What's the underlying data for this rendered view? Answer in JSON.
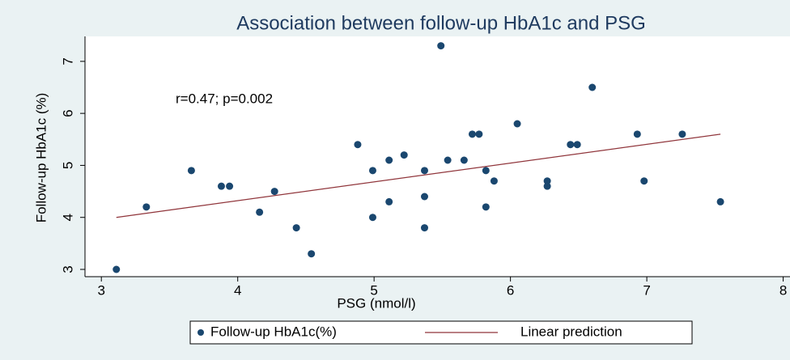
{
  "chart_data": {
    "type": "scatter",
    "title": "Association between follow-up HbA1c and PSG",
    "x_label": "PSG (nmol/l)",
    "y_label": "Follow-up HbA1c (%)",
    "annotation": "r=0.47; p=0.002",
    "xlim": [
      2.88,
      8.05
    ],
    "xticks": [
      3,
      4,
      5,
      6,
      7,
      8
    ],
    "ylim": [
      2.86,
      7.48
    ],
    "yticks": [
      3,
      4,
      5,
      6,
      7
    ],
    "series": [
      {
        "name": "Follow-up HbA1c(%)",
        "color": "#1a476f",
        "type": "scatter",
        "x": [
          3.11,
          3.33,
          3.66,
          3.88,
          3.94,
          4.16,
          4.27,
          4.43,
          4.54,
          4.88,
          4.99,
          4.99,
          5.11,
          5.11,
          5.22,
          5.37,
          5.37,
          5.37,
          5.49,
          5.54,
          5.66,
          5.72,
          5.77,
          5.82,
          5.82,
          5.88,
          6.05,
          6.27,
          6.27,
          6.44,
          6.49,
          6.6,
          6.93,
          6.98,
          7.26,
          7.54
        ],
        "values": [
          3.0,
          4.2,
          4.9,
          4.6,
          4.6,
          4.1,
          4.5,
          3.8,
          3.3,
          5.4,
          4.9,
          4.0,
          5.1,
          4.3,
          5.2,
          4.9,
          4.4,
          3.8,
          7.3,
          5.1,
          5.1,
          5.6,
          5.6,
          4.9,
          4.2,
          4.7,
          5.8,
          4.7,
          4.6,
          5.4,
          5.4,
          6.5,
          5.6,
          4.7,
          5.6,
          4.3
        ]
      },
      {
        "name": "Linear prediction",
        "color": "#90353b",
        "type": "line",
        "x": [
          3.11,
          7.54
        ],
        "values": [
          4.0,
          5.6
        ]
      }
    ]
  }
}
